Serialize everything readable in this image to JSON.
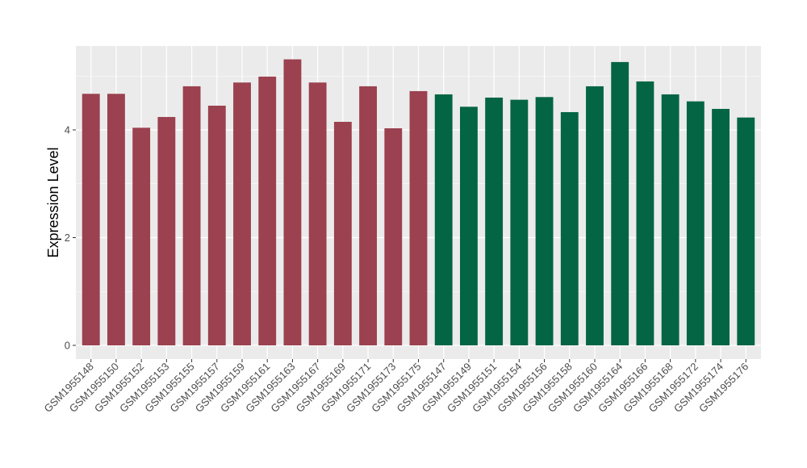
{
  "chart_data": {
    "type": "bar",
    "title": "",
    "xlabel": "",
    "ylabel": "Expression Level",
    "ylim": [
      0,
      5.6
    ],
    "yticks": [
      0,
      2,
      4
    ],
    "grid": true,
    "legend": "none",
    "categories": [
      "GSM1955148",
      "GSM1955150",
      "GSM1955152",
      "GSM1955153",
      "GSM1955155",
      "GSM1955157",
      "GSM1955159",
      "GSM1955161",
      "GSM1955163",
      "GSM1955167",
      "GSM1955169",
      "GSM1955171",
      "GSM1955173",
      "GSM1955175",
      "GSM1955147",
      "GSM1955149",
      "GSM1955151",
      "GSM1955154",
      "GSM1955156",
      "GSM1955158",
      "GSM1955160",
      "GSM1955164",
      "GSM1955166",
      "GSM1955168",
      "GSM1955172",
      "GSM1955174",
      "GSM1955176"
    ],
    "values": [
      4.67,
      4.67,
      4.04,
      4.24,
      4.81,
      4.45,
      4.88,
      4.99,
      5.31,
      4.88,
      4.15,
      4.81,
      4.03,
      4.72,
      4.66,
      4.43,
      4.6,
      4.56,
      4.61,
      4.33,
      4.81,
      5.26,
      4.9,
      4.66,
      4.53,
      4.39,
      4.23
    ],
    "colors": [
      "#9b4150",
      "#9b4150",
      "#9b4150",
      "#9b4150",
      "#9b4150",
      "#9b4150",
      "#9b4150",
      "#9b4150",
      "#9b4150",
      "#9b4150",
      "#9b4150",
      "#9b4150",
      "#9b4150",
      "#9b4150",
      "#036543",
      "#036543",
      "#036543",
      "#036543",
      "#036543",
      "#036543",
      "#036543",
      "#036543",
      "#036543",
      "#036543",
      "#036543",
      "#036543",
      "#036543"
    ],
    "panel_background": "#ebebeb",
    "grid_color": "#ffffff"
  }
}
